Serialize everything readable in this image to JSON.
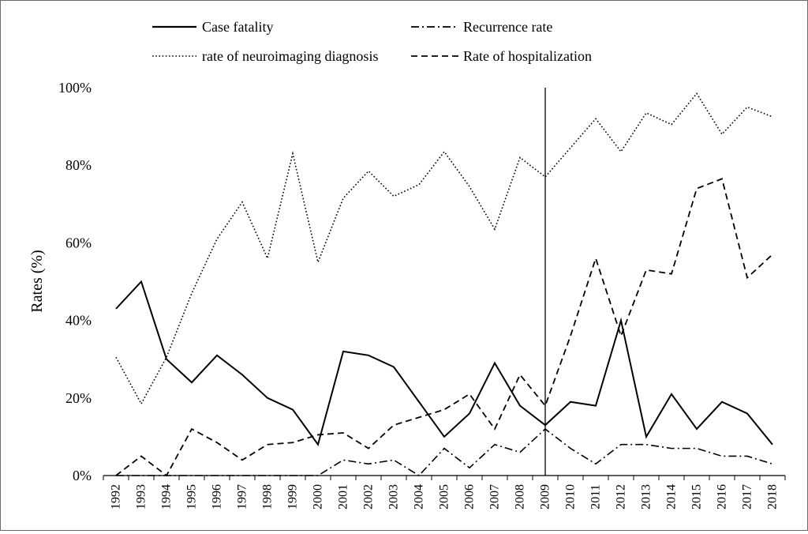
{
  "chart_data": {
    "type": "line",
    "title": "",
    "xlabel": "",
    "ylabel": "Rates (%)",
    "ylim": [
      0,
      100
    ],
    "y_ticks": [
      "0%",
      "20%",
      "40%",
      "60%",
      "80%",
      "100%"
    ],
    "x": [
      "1992",
      "1993",
      "1994",
      "1995",
      "1996",
      "1997",
      "1998",
      "1999",
      "2000",
      "2001",
      "2002",
      "2003",
      "2004",
      "2005",
      "2006",
      "2007",
      "2008",
      "2009",
      "2010",
      "2011",
      "2012",
      "2013",
      "2014",
      "2015",
      "2016",
      "2017",
      "2018"
    ],
    "reference_line_x": "2009",
    "grid": false,
    "legend_position": "top",
    "series": [
      {
        "name": "Case fatality",
        "style": "solid",
        "values": [
          43,
          50,
          30,
          24,
          31,
          26,
          20,
          17,
          8,
          32,
          31,
          28,
          19,
          10,
          16,
          29,
          18,
          13,
          19,
          18,
          40,
          10,
          21,
          12,
          19,
          16,
          8
        ]
      },
      {
        "name": "Recurrence rate",
        "style": "dashdot",
        "values": [
          0,
          0,
          0,
          0,
          0,
          0,
          0,
          0,
          0,
          4,
          3,
          4,
          0,
          7,
          2,
          8,
          6,
          12,
          7,
          3,
          8,
          8,
          7,
          7,
          5,
          5,
          3
        ]
      },
      {
        "name": "rate of neuroimaging diagnosis",
        "style": "dotted",
        "values": [
          30.5,
          18.5,
          30.5,
          47,
          61,
          70.5,
          56,
          83,
          55,
          71.5,
          78.5,
          72,
          75,
          83.5,
          74.5,
          63.5,
          82,
          77,
          84.5,
          92,
          83.5,
          93.5,
          90.5,
          98.5,
          88,
          95,
          92.5
        ]
      },
      {
        "name": "Rate of hospitalization",
        "style": "dashed",
        "values": [
          0,
          5,
          0,
          12,
          8.5,
          4,
          8,
          8.5,
          10.5,
          11,
          7,
          13,
          15,
          17,
          21,
          12,
          26,
          18,
          36,
          56,
          36,
          53,
          52,
          74,
          76.5,
          51,
          57
        ]
      }
    ]
  }
}
